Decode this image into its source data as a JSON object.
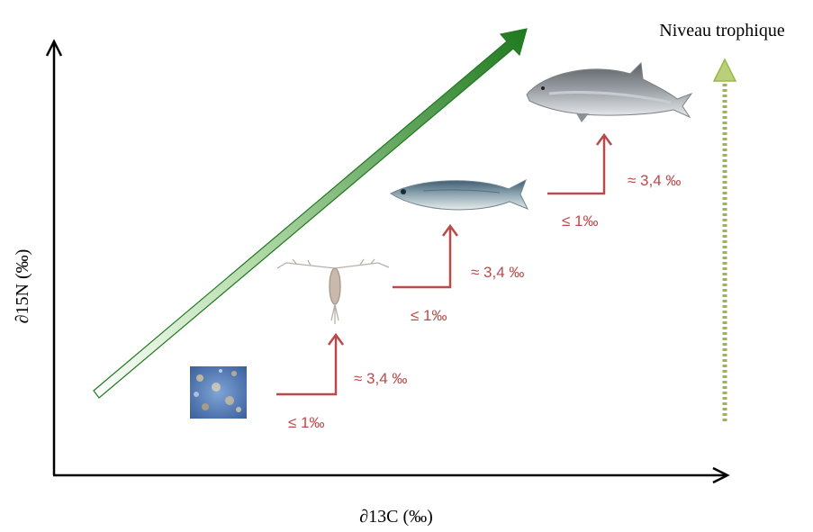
{
  "axes": {
    "x_label": "∂13C (‰)",
    "y_label": "∂15N (‰)"
  },
  "trophic_label": "Niveau trophique",
  "steps": [
    {
      "carbon_label": "≤ 1‰",
      "nitrogen_label": "≈ 3,4 ‰"
    },
    {
      "carbon_label": "≤ 1‰",
      "nitrogen_label": "≈ 3,4 ‰"
    },
    {
      "carbon_label": "≤ 1‰",
      "nitrogen_label": "≈ 3,4 ‰"
    }
  ],
  "organisms": [
    "phytoplankton",
    "zooplankton",
    "sardine",
    "dolphin"
  ],
  "colors": {
    "step_arrow": "#b94a4a",
    "gradient_arrow_start": "#ffffff",
    "gradient_arrow_end": "#1f7a1f",
    "trophic_arrow": "#9ab84a",
    "axes": "#000000"
  }
}
